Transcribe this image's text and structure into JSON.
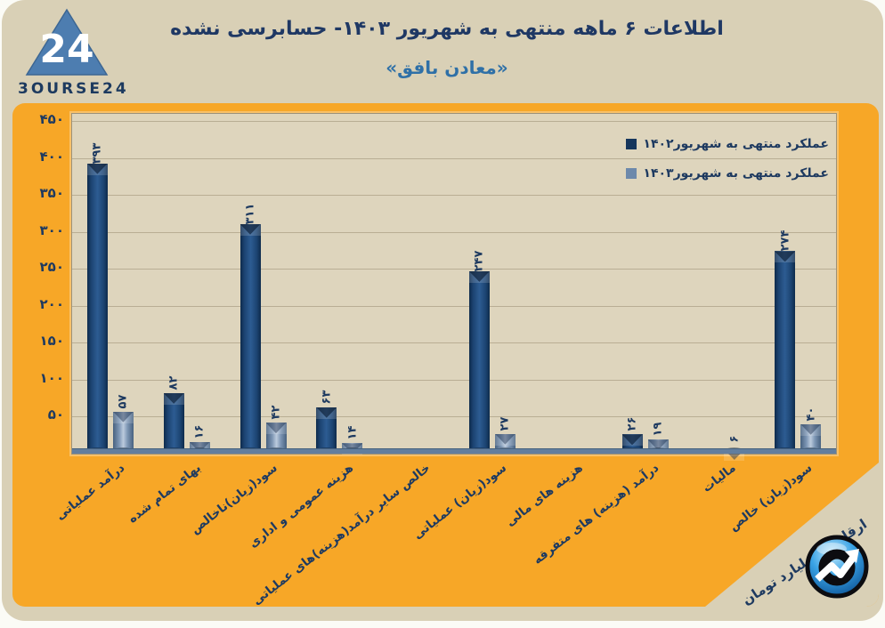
{
  "header": {
    "logo_24": "24",
    "logo_text": "3OURSE24",
    "title": "اطلاعات ۶ ماهه منتهی به شهریور ۱۴۰۳- حسابرسی نشده",
    "subtitle": "«معادن بافق»"
  },
  "chart_data": {
    "type": "bar",
    "rtl": true,
    "title": "اطلاعات ۶ ماهه منتهی به شهریور ۱۴۰۳- حسابرسی نشده",
    "subtitle": "«معادن بافق»",
    "unit_note": "ارقام به میلیارد تومان",
    "categories": [
      "درآمد عملیاتی",
      "بهای تمام شده",
      "سود(زیان)ناخالص",
      "هزینه عمومی و اداری",
      "خالص سایر درآمد(هزینه)های عملیاتی",
      "سود(زیان) عملیاتی",
      "هزینه های مالی",
      "درآمد (هزینه) های متفرقه",
      "مالیات",
      "سود(زیان) خالص"
    ],
    "series": [
      {
        "name": "عملکرد منتهی به شهریور۱۴۰۲",
        "color": "#1c4472",
        "legend_marker": "#16365c",
        "values": [
          393,
          82,
          311,
          63,
          null,
          247,
          null,
          26,
          null,
          274
        ],
        "labels": [
          "۳۹۳",
          "۸۲",
          "۳۱۱",
          "۶۳",
          "",
          "۲۴۷",
          "",
          "۲۶",
          "",
          "۲۷۴"
        ]
      },
      {
        "name": "عملکرد منتهی به شهریور۱۴۰۳",
        "color": "#7e97b5",
        "legend_marker": "#6d89ab",
        "values": [
          57,
          16,
          42,
          14,
          null,
          27,
          null,
          19,
          6,
          40
        ],
        "labels": [
          "۵۷",
          "۱۶",
          "۴۲",
          "۱۴",
          "",
          "۲۷",
          "",
          "۱۹",
          "۶",
          "۴۰"
        ]
      }
    ],
    "y_ticks": [
      {
        "value": 50,
        "label": "۵۰"
      },
      {
        "value": 100,
        "label": "۱۰۰"
      },
      {
        "value": 150,
        "label": "۱۵۰"
      },
      {
        "value": 200,
        "label": "۲۰۰"
      },
      {
        "value": 250,
        "label": "۲۵۰"
      },
      {
        "value": 300,
        "label": "۳۰۰"
      },
      {
        "value": 350,
        "label": "۳۵۰"
      },
      {
        "value": 400,
        "label": "۴۰۰"
      },
      {
        "value": 450,
        "label": "۴۵۰"
      }
    ],
    "ylim": [
      0,
      460
    ],
    "grid": true,
    "legend_position": "top-right"
  },
  "colors": {
    "canvas": "#fbfbf6",
    "page_bg": "#d9d0b6",
    "panel_orange": "#f7a727",
    "plot_bg": "#ded5bd",
    "gridline": "#b9ae94",
    "axis_strip": "#627e9e",
    "text_navy": "#1e3a60",
    "title_navy": "#1f3864",
    "subtitle_blue": "#2f70a7"
  }
}
